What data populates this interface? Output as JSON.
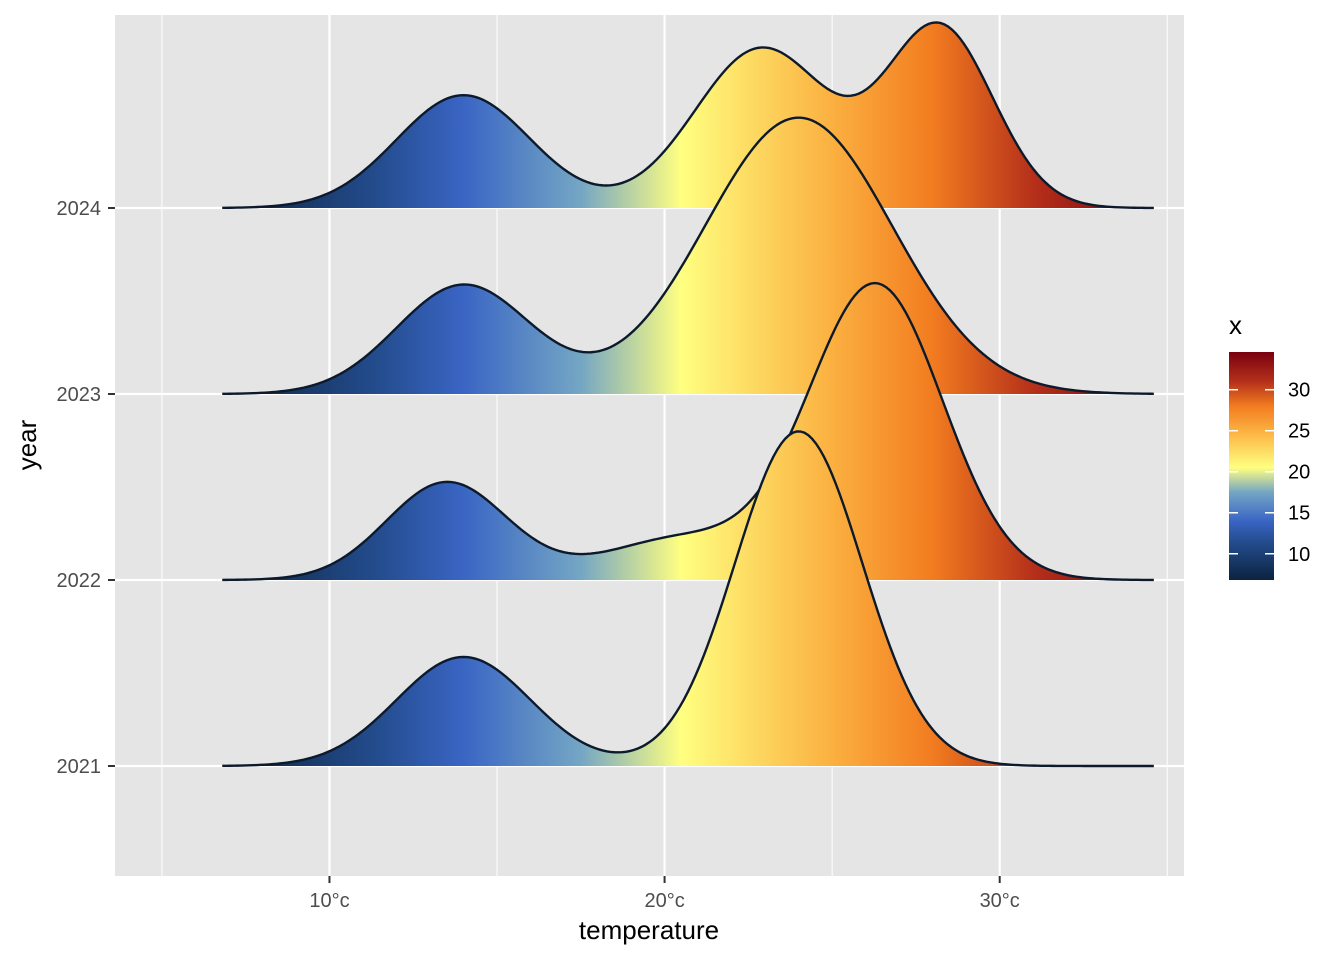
{
  "chart_data": {
    "type": "ridgeline",
    "title": "",
    "xlabel": "temperature",
    "ylabel": "year",
    "x_tick_labels": [
      "10°c",
      "20°c",
      "30°c"
    ],
    "x_ticks": [
      10,
      20,
      30
    ],
    "xlim": [
      3.6,
      35.5
    ],
    "categories": [
      "2021",
      "2022",
      "2023",
      "2024"
    ],
    "grid": true,
    "legend": {
      "title": "x",
      "placement": "right",
      "ticks": [
        10,
        15,
        20,
        25,
        30
      ],
      "tick_labels": [
        "10",
        "15",
        "20",
        "25",
        "30"
      ],
      "range": [
        6.8,
        34.6
      ],
      "colors": [
        {
          "value": 6.8,
          "color": "#0c2340"
        },
        {
          "value": 11.5,
          "color": "#244d8f"
        },
        {
          "value": 14.0,
          "color": "#3a65c4"
        },
        {
          "value": 17.5,
          "color": "#74a6c4"
        },
        {
          "value": 20.5,
          "color": "#ffff80"
        },
        {
          "value": 25.0,
          "color": "#fbb040"
        },
        {
          "value": 28.0,
          "color": "#f27c20"
        },
        {
          "value": 31.0,
          "color": "#b5301a"
        },
        {
          "value": 34.6,
          "color": "#7a0010"
        }
      ]
    },
    "x_range_density": [
      6.8,
      34.6
    ],
    "series": [
      {
        "name": "2021",
        "peaks": [
          {
            "mu": 14.0,
            "sigma": 2.0,
            "h": 0.58
          },
          {
            "mu": 24.0,
            "sigma": 1.9,
            "h": 1.78
          }
        ]
      },
      {
        "name": "2022",
        "peaks": [
          {
            "mu": 13.5,
            "sigma": 1.8,
            "h": 0.52
          },
          {
            "mu": 20.5,
            "sigma": 2.3,
            "h": 0.22
          },
          {
            "mu": 26.3,
            "sigma": 2.0,
            "h": 1.57
          }
        ]
      },
      {
        "name": "2023",
        "peaks": [
          {
            "mu": 14.0,
            "sigma": 2.0,
            "h": 0.58
          },
          {
            "mu": 24.0,
            "sigma": 2.8,
            "h": 1.47
          }
        ]
      },
      {
        "name": "2024",
        "peaks": [
          {
            "mu": 14.0,
            "sigma": 2.0,
            "h": 0.6
          },
          {
            "mu": 22.9,
            "sigma": 2.0,
            "h": 0.85
          },
          {
            "mu": 28.2,
            "sigma": 1.6,
            "h": 0.96
          }
        ]
      }
    ]
  }
}
